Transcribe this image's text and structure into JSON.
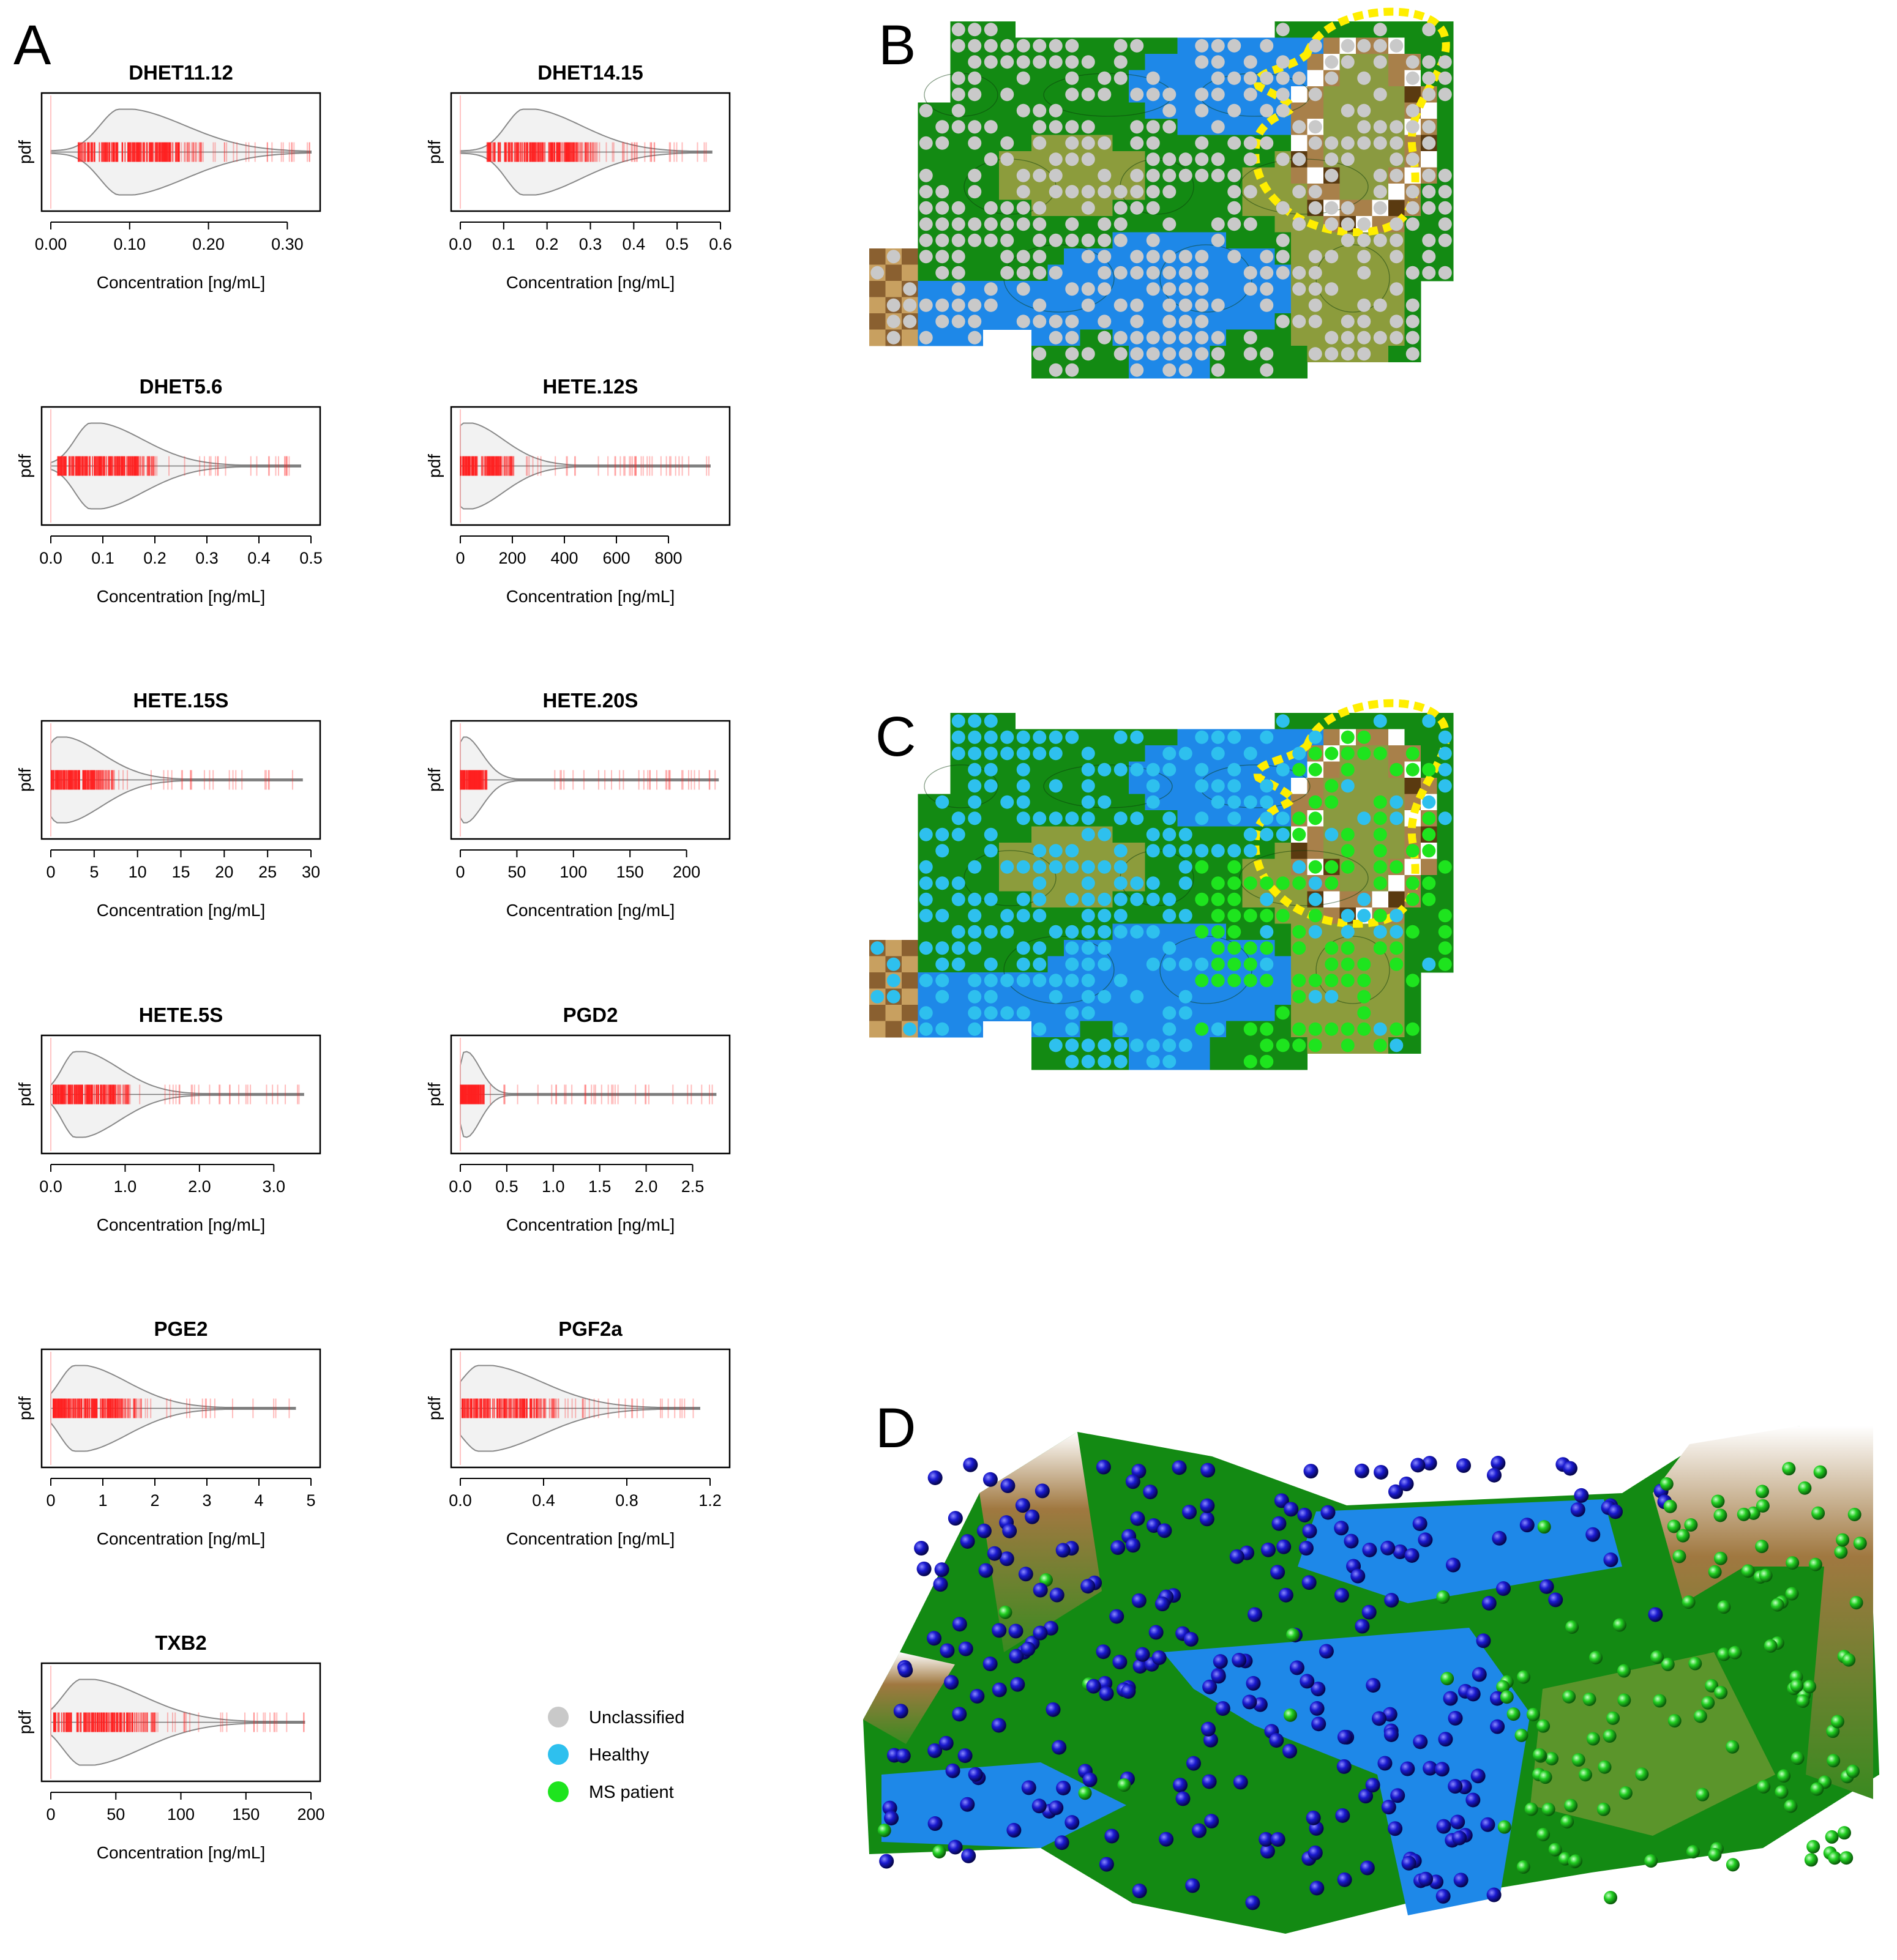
{
  "panels": {
    "A": "A",
    "B": "B",
    "C": "C",
    "D": "D"
  },
  "legend": {
    "items": [
      {
        "label": "Unclassified",
        "color": "#c9c9c9"
      },
      {
        "label": "Healthy",
        "color": "#2ec0ee"
      },
      {
        "label": "MS patient",
        "color": "#1ee41e"
      }
    ]
  },
  "colors": {
    "rug": "#ff2020",
    "violin_fill": "#f2f2f2",
    "violin_stroke": "#888888",
    "map_blue": "#1e88e8",
    "map_green": "#138a13",
    "map_olive": "#8c9c3c",
    "map_brown": "#7a5020",
    "outline_yellow": "#ffee00",
    "sphere_blue": "#1a1ad0",
    "sphere_green": "#22d022"
  },
  "chart_data": [
    {
      "type": "violin",
      "title": "DHET11.12",
      "ylabel": "pdf",
      "xlabel": "Concentration [ng/mL]",
      "xlim": [
        0,
        0.33
      ],
      "ticks": [
        0,
        0.1,
        0.2,
        0.3
      ],
      "tick_labels": [
        "0.00",
        "0.10",
        "0.20",
        "0.30"
      ],
      "mode": 0.09,
      "spread": 0.05,
      "rug_max": 0.33
    },
    {
      "type": "violin",
      "title": "DHET14.15",
      "ylabel": "pdf",
      "xlabel": "Concentration [ng/mL]",
      "xlim": [
        0,
        0.6
      ],
      "ticks": [
        0,
        0.1,
        0.2,
        0.3,
        0.4,
        0.5,
        0.6
      ],
      "tick_labels": [
        "0.0",
        "0.1",
        "0.2",
        "0.3",
        "0.4",
        "0.5",
        "0.6"
      ],
      "mode": 0.15,
      "spread": 0.08,
      "rug_max": 0.58
    },
    {
      "type": "violin",
      "title": "DHET5.6",
      "ylabel": "pdf",
      "xlabel": "Concentration [ng/mL]",
      "xlim": [
        0,
        0.5
      ],
      "ticks": [
        0,
        0.1,
        0.2,
        0.3,
        0.4,
        0.5
      ],
      "tick_labels": [
        "0.0",
        "0.1",
        "0.2",
        "0.3",
        "0.4",
        "0.5"
      ],
      "mode": 0.08,
      "spread": 0.06,
      "rug_max": 0.48
    },
    {
      "type": "violin",
      "title": "HETE.12S",
      "ylabel": "pdf",
      "xlabel": "Concentration [ng/mL]",
      "xlim": [
        0,
        1000
      ],
      "ticks": [
        0,
        200,
        400,
        600,
        800
      ],
      "tick_labels": [
        "0",
        "200",
        "400",
        "600",
        "800"
      ],
      "mode": 20,
      "spread": 90,
      "rug_max": 960
    },
    {
      "type": "violin",
      "title": "HETE.15S",
      "ylabel": "pdf",
      "xlabel": "Concentration [ng/mL]",
      "xlim": [
        0,
        30
      ],
      "ticks": [
        0,
        5,
        10,
        15,
        20,
        25,
        30
      ],
      "tick_labels": [
        "0",
        "5",
        "10",
        "15",
        "20",
        "25",
        "30"
      ],
      "mode": 1.0,
      "spread": 3.0,
      "rug_max": 29
    },
    {
      "type": "violin",
      "title": "HETE.20S",
      "ylabel": "pdf",
      "xlabel": "Concentration [ng/mL]",
      "xlim": [
        0,
        230
      ],
      "ticks": [
        0,
        50,
        100,
        150,
        200
      ],
      "tick_labels": [
        "0",
        "50",
        "100",
        "150",
        "200"
      ],
      "mode": 3,
      "spread": 10,
      "rug_max": 228
    },
    {
      "type": "violin",
      "title": "HETE.5S",
      "ylabel": "pdf",
      "xlabel": "Concentration [ng/mL]",
      "xlim": [
        0,
        3.5
      ],
      "ticks": [
        0,
        1,
        2,
        3
      ],
      "tick_labels": [
        "0.0",
        "1.0",
        "2.0",
        "3.0"
      ],
      "mode": 0.35,
      "spread": 0.35,
      "rug_max": 3.4
    },
    {
      "type": "violin",
      "title": "PGD2",
      "ylabel": "pdf",
      "xlabel": "Concentration [ng/mL]",
      "xlim": [
        0,
        2.8
      ],
      "ticks": [
        0,
        0.5,
        1.0,
        1.5,
        2.0,
        2.5
      ],
      "tick_labels": [
        "0.0",
        "0.5",
        "1.0",
        "1.5",
        "2.0",
        "2.5"
      ],
      "mode": 0.05,
      "spread": 0.1,
      "rug_max": 2.75
    },
    {
      "type": "violin",
      "title": "PGE2",
      "ylabel": "pdf",
      "xlabel": "Concentration [ng/mL]",
      "xlim": [
        0,
        5
      ],
      "ticks": [
        0,
        1,
        2,
        3,
        4,
        5
      ],
      "tick_labels": [
        "0",
        "1",
        "2",
        "3",
        "4",
        "5"
      ],
      "mode": 0.5,
      "spread": 0.6,
      "rug_max": 4.7
    },
    {
      "type": "violin",
      "title": "PGF2a",
      "ylabel": "pdf",
      "xlabel": "Concentration [ng/mL]",
      "xlim": [
        0,
        1.25
      ],
      "ticks": [
        0,
        0.4,
        0.8,
        1.2
      ],
      "tick_labels": [
        "0.0",
        "0.4",
        "0.8",
        "1.2"
      ],
      "mode": 0.1,
      "spread": 0.18,
      "rug_max": 1.15
    },
    {
      "type": "violin",
      "title": "TXB2",
      "ylabel": "pdf",
      "xlabel": "Concentration [ng/mL]",
      "xlim": [
        0,
        200
      ],
      "ticks": [
        0,
        50,
        100,
        150,
        200
      ],
      "tick_labels": [
        "0",
        "50",
        "100",
        "150",
        "200"
      ],
      "mode": 25,
      "spread": 28,
      "rug_max": 195
    }
  ]
}
